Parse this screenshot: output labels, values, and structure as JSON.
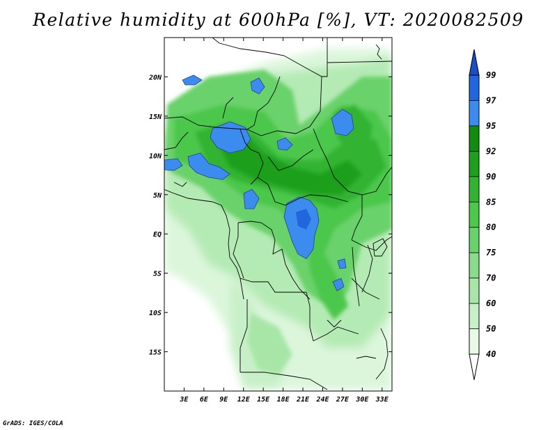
{
  "title": "Relative humidity at 600hPa [%], VT: 2020082509",
  "credit": "GrADS: IGES/COLA",
  "map": {
    "lon_range": [
      0,
      34.5
    ],
    "lat_range": [
      -20,
      25
    ],
    "x_ticks": [
      {
        "value": 3,
        "label": "3E"
      },
      {
        "value": 6,
        "label": "6E"
      },
      {
        "value": 9,
        "label": "9E"
      },
      {
        "value": 12,
        "label": "12E"
      },
      {
        "value": 15,
        "label": "15E"
      },
      {
        "value": 18,
        "label": "18E"
      },
      {
        "value": 21,
        "label": "21E"
      },
      {
        "value": 24,
        "label": "24E"
      },
      {
        "value": 27,
        "label": "27E"
      },
      {
        "value": 30,
        "label": "30E"
      },
      {
        "value": 33,
        "label": "33E"
      }
    ],
    "y_ticks": [
      {
        "value": 20,
        "label": "20N"
      },
      {
        "value": 15,
        "label": "15N"
      },
      {
        "value": 10,
        "label": "10N"
      },
      {
        "value": 5,
        "label": "5N"
      },
      {
        "value": 0,
        "label": "EQ"
      },
      {
        "value": -5,
        "label": "5S"
      },
      {
        "value": -10,
        "label": "10S"
      },
      {
        "value": -15,
        "label": "15S"
      }
    ]
  },
  "colorbar": {
    "levels": [
      "40",
      "50",
      "60",
      "70",
      "75",
      "80",
      "85",
      "90",
      "92",
      "95",
      "97",
      "99"
    ],
    "colors": [
      "#ffffff",
      "#e6fae6",
      "#c8f0c8",
      "#a8e6a8",
      "#8adc8a",
      "#6ad26a",
      "#4cc84c",
      "#32b432",
      "#1ea01e",
      "#118c11",
      "#3c8cf0",
      "#2266dd",
      "#1a4ec8"
    ]
  }
}
